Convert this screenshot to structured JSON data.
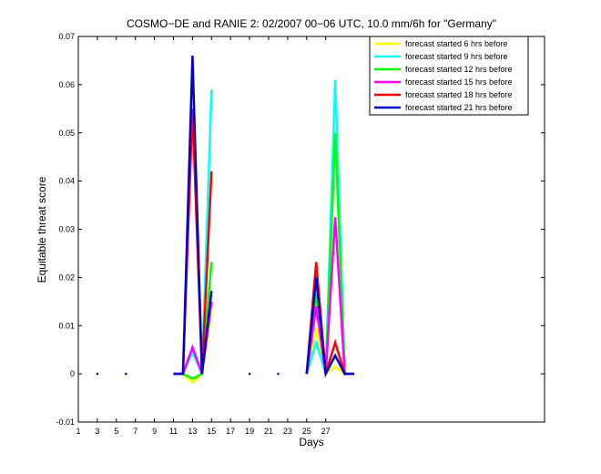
{
  "chart_data": {
    "type": "line",
    "title": "COSMO−DE and RANIE 2: 02/2007 00−06 UTC, 10.0 mm/6h for \"Germany\"",
    "xlabel": "Days",
    "ylabel": "Equitable threat score",
    "xlim": [
      1,
      50
    ],
    "ylim": [
      -0.01,
      0.07
    ],
    "xticks": [
      1,
      3,
      5,
      7,
      9,
      11,
      13,
      15,
      17,
      19,
      21,
      23,
      25,
      27
    ],
    "xtick_labels": [
      "1",
      "3",
      "5",
      "7",
      "9",
      "11",
      "13",
      "15",
      "17",
      "19",
      "21",
      "23",
      "25",
      "27"
    ],
    "yticks": [
      -0.01,
      0,
      0.01,
      0.02,
      0.03,
      0.04,
      0.05,
      0.06,
      0.07
    ],
    "ytick_labels": [
      "-0.01",
      "0",
      "0.01",
      "0.02",
      "0.03",
      "0.04",
      "0.05",
      "0.06",
      "0.07"
    ],
    "grid": false,
    "legend_position": "top-right",
    "series": [
      {
        "name": "forecast started 6 hrs before",
        "color": "#ffff00",
        "x": [
          3,
          6,
          11,
          12,
          13,
          14,
          15,
          19,
          22,
          25,
          26,
          27,
          28,
          29,
          30
        ],
        "y": [
          0,
          0,
          0,
          0,
          -0.0018,
          0,
          0.013,
          0,
          0,
          0,
          0.0095,
          0,
          0.0015,
          0,
          0
        ]
      },
      {
        "name": "forecast started 9 hrs before",
        "color": "#00ffff",
        "x": [
          3,
          6,
          11,
          12,
          13,
          14,
          15,
          19,
          22,
          25,
          26,
          27,
          28,
          29,
          30
        ],
        "y": [
          0,
          0,
          0,
          0,
          0.0045,
          0,
          0.059,
          0,
          0,
          0,
          0.0065,
          0,
          0.061,
          0,
          0
        ]
      },
      {
        "name": "forecast started 12 hrs before",
        "color": "#00ff00",
        "x": [
          3,
          6,
          11,
          12,
          13,
          14,
          15,
          19,
          22,
          25,
          26,
          27,
          28,
          29,
          30
        ],
        "y": [
          0,
          0,
          0,
          0,
          -0.001,
          0,
          0.0232,
          0,
          0,
          0,
          0.0165,
          0,
          0.05,
          0,
          0
        ]
      },
      {
        "name": "forecast started 15 hrs before",
        "color": "#ff00ff",
        "x": [
          3,
          6,
          11,
          12,
          13,
          14,
          15,
          19,
          22,
          25,
          26,
          27,
          28,
          29,
          30
        ],
        "y": [
          0,
          0,
          0,
          0,
          0.0055,
          0,
          0.015,
          0,
          0,
          0,
          0.014,
          0,
          0.0325,
          0,
          0
        ]
      },
      {
        "name": "forecast started 18 hrs before",
        "color": "#ff0000",
        "x": [
          3,
          6,
          11,
          12,
          13,
          14,
          15,
          19,
          22,
          25,
          26,
          27,
          28,
          29,
          30
        ],
        "y": [
          0,
          0,
          0,
          0,
          0.055,
          0,
          0.042,
          0,
          0,
          0,
          0.0232,
          0,
          0.0065,
          0,
          0
        ]
      },
      {
        "name": "forecast started 21 hrs before",
        "color": "#0000cc",
        "x": [
          3,
          6,
          11,
          12,
          13,
          14,
          15,
          19,
          22,
          25,
          26,
          27,
          28,
          29,
          30
        ],
        "y": [
          0,
          0,
          0,
          0,
          0.066,
          0,
          0.0172,
          0,
          0,
          0,
          0.02,
          0,
          0.0038,
          0,
          0
        ]
      }
    ]
  }
}
